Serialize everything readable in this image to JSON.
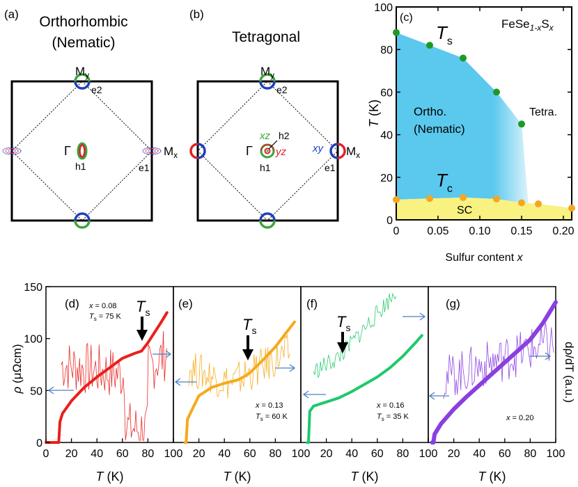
{
  "figure": {
    "panel_a": {
      "letter": "(a)",
      "title_line1": "Orthorhombic",
      "title_line2": "(Nematic)",
      "labels": {
        "my": "M",
        "my_sub": "y",
        "mx": "M",
        "mx_sub": "x",
        "gamma": "Γ",
        "h1": "h1",
        "e1": "e1",
        "e2": "e2"
      }
    },
    "panel_b": {
      "letter": "(b)",
      "title": "Tetragonal",
      "labels": {
        "my": "M",
        "my_sub": "y",
        "mx": "M",
        "mx_sub": "x",
        "gamma": "Γ",
        "h1": "h1",
        "h2": "h2",
        "e1": "e1",
        "e2": "e2",
        "xz": "xz",
        "yz": "yz",
        "xy": "xy"
      }
    },
    "colors": {
      "orbital_red": "#e0202a",
      "orbital_green": "#3aa53a",
      "orbital_blue": "#1f3fbf",
      "nematic_fill": "#5bc8ee",
      "sc_fill": "#fbf58a",
      "ts_point": "#1e9a24",
      "tc_point": "#f5a623"
    }
  },
  "chart_data": [
    {
      "type": "scatter",
      "panel": "(c)",
      "title": "FeSe",
      "title_sub": "1-x",
      "title_s": "S",
      "title_x": "x",
      "xlabel": "Sulfur content ",
      "xlabel_var": "x",
      "ylabel_var": "T",
      "ylabel_unit": " (K)",
      "xlim": [
        0,
        0.21
      ],
      "ylim": [
        0,
        100
      ],
      "xticks": [
        "0",
        "0.05",
        "0.10",
        "0.15",
        "0.20"
      ],
      "xtick_values": [
        0,
        0.05,
        0.1,
        0.15,
        0.2
      ],
      "yticks": [
        "0",
        "20",
        "40",
        "60",
        "80",
        "100"
      ],
      "ytick_values": [
        0,
        20,
        40,
        60,
        80,
        100
      ],
      "annotations": {
        "ts": "T",
        "ts_sub": "s",
        "tc": "T",
        "tc_sub": "c",
        "ortho_line1": "Ortho.",
        "ortho_line2": "(Nematic)",
        "tetra": "Tetra.",
        "sc": "SC"
      },
      "series": [
        {
          "name": "Ts",
          "x": [
            0,
            0.04,
            0.08,
            0.12,
            0.15
          ],
          "y": [
            88,
            82,
            76,
            60,
            45
          ]
        },
        {
          "name": "Tc",
          "x": [
            0,
            0.04,
            0.08,
            0.12,
            0.15,
            0.17,
            0.21
          ],
          "y": [
            9.5,
            10,
            10.5,
            9.8,
            8,
            7.5,
            5.5
          ]
        }
      ]
    },
    {
      "type": "line",
      "panels": [
        {
          "letter": "(d)",
          "x_label": "x",
          "x_val": " = 0.08",
          "ts_label": "T",
          "ts_sub": "s",
          "ts_val": " = 75 K",
          "arrow_ts": "T",
          "arrow_ts_sub": "s"
        },
        {
          "letter": "(e)",
          "x_label": "x",
          "x_val": " = 0.13",
          "ts_label": "T",
          "ts_sub": "s",
          "ts_val": " = 60 K",
          "arrow_ts": "T",
          "arrow_ts_sub": "s"
        },
        {
          "letter": "(f)",
          "x_label": "x",
          "x_val": " = 0.16",
          "ts_label": "T",
          "ts_sub": "s",
          "ts_val": " = 35 K",
          "arrow_ts": "T",
          "arrow_ts_sub": "s"
        },
        {
          "letter": "(g)",
          "x_label": "x",
          "x_val": " = 0.20"
        }
      ],
      "xlabel_var": "T",
      "xlabel_unit": " (K)",
      "ylabel_left_var": "ρ",
      "ylabel_left_unit": " (μΩcm)",
      "ylabel_right": "dρ/dT (a.u.)",
      "xlim": [
        0,
        100
      ],
      "ylim": [
        0,
        150
      ],
      "xticks": [
        "0",
        "20",
        "40",
        "60",
        "80",
        "100"
      ],
      "xtick_values": [
        0,
        20,
        40,
        60,
        80,
        100
      ],
      "yticks": [
        "0",
        "50",
        "100",
        "150"
      ],
      "ytick_values": [
        0,
        50,
        100,
        150
      ],
      "series": [
        {
          "name": "rho x=0.08",
          "color": "#e8201c",
          "x": [
            0,
            10,
            11,
            13,
            20,
            30,
            40,
            50,
            60,
            70,
            75,
            80,
            90,
            95
          ],
          "y": [
            0,
            0,
            20,
            28,
            40,
            53,
            63,
            72,
            81,
            86,
            88,
            96,
            115,
            125
          ]
        },
        {
          "name": "rho x=0.13",
          "color": "#f5a91b",
          "x": [
            9,
            10,
            11,
            14,
            20,
            30,
            40,
            50,
            55,
            60,
            70,
            80,
            90,
            95
          ],
          "y": [
            0,
            0,
            22,
            30,
            45,
            53,
            57,
            60,
            63,
            67,
            79,
            92,
            108,
            116
          ]
        },
        {
          "name": "rho x=0.16",
          "color": "#1ec96a",
          "x": [
            5,
            6,
            7,
            10,
            20,
            30,
            40,
            50,
            60,
            70,
            80,
            90,
            95
          ],
          "y": [
            0,
            0,
            30,
            35,
            39,
            43,
            49,
            56,
            63,
            72,
            83,
            96,
            103
          ]
        },
        {
          "name": "rho x=0.20",
          "color": "#8a3fe0",
          "x": [
            3,
            4,
            5,
            10,
            20,
            30,
            40,
            50,
            60,
            70,
            80,
            90,
            100
          ],
          "y": [
            0,
            0,
            8,
            18,
            32,
            44,
            55,
            66,
            77,
            88,
            99,
            115,
            135
          ]
        }
      ]
    }
  ]
}
